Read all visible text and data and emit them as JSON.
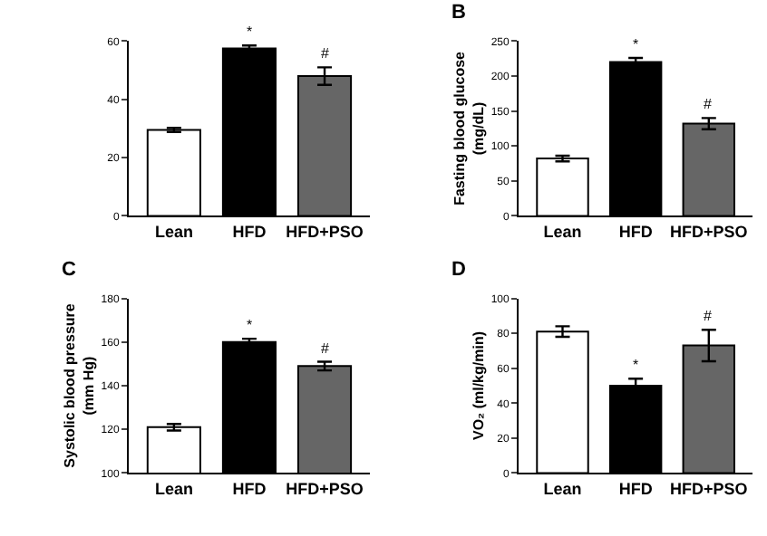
{
  "chart_data": [
    {
      "type": "bar",
      "categories": [
        "Lean",
        "HFD",
        "HFD+PSO"
      ],
      "values": [
        29.5,
        57.5,
        48
      ],
      "errors": [
        0.7,
        1,
        3
      ],
      "colors": [
        "#ffffff",
        "#000000",
        "#666666"
      ],
      "ylim": [
        0,
        60
      ],
      "yticks": [
        0,
        20,
        40,
        60
      ],
      "grid": false,
      "legend": false,
      "annotations": [
        {
          "text": "*",
          "x": "HFD",
          "y": 58.5
        },
        {
          "text": "#",
          "x": "HFD+PSO",
          "y": 51
        }
      ]
    },
    {
      "type": "bar",
      "title": "B",
      "ylabel": "Fasting blood glucose\n(mg/dL)",
      "categories": [
        "Lean",
        "HFD",
        "HFD+PSO"
      ],
      "values": [
        82,
        220,
        132
      ],
      "errors": [
        4,
        6,
        8
      ],
      "colors": [
        "#ffffff",
        "#000000",
        "#666666"
      ],
      "ylim": [
        0,
        250
      ],
      "yticks": [
        0,
        50,
        100,
        150,
        200,
        250
      ],
      "grid": false,
      "legend": false,
      "annotations": [
        {
          "text": "*",
          "x": "HFD",
          "y": 226
        },
        {
          "text": "#",
          "x": "HFD+PSO",
          "y": 140
        }
      ]
    },
    {
      "type": "bar",
      "title": "C",
      "ylabel": "Systolic blood pressure\n(mm Hg)",
      "categories": [
        "Lean",
        "HFD",
        "HFD+PSO"
      ],
      "values": [
        121,
        160,
        149
      ],
      "errors": [
        1.5,
        1.5,
        2
      ],
      "colors": [
        "#ffffff",
        "#000000",
        "#666666"
      ],
      "ylim": [
        100,
        180
      ],
      "yticks": [
        100,
        120,
        140,
        160,
        180
      ],
      "grid": false,
      "legend": false,
      "annotations": [
        {
          "text": "*",
          "x": "HFD",
          "y": 161.5
        },
        {
          "text": "#",
          "x": "HFD+PSO",
          "y": 151
        }
      ]
    },
    {
      "type": "bar",
      "title": "D",
      "ylabel": "VO₂ (ml/kg/min)",
      "categories": [
        "Lean",
        "HFD",
        "HFD+PSO"
      ],
      "values": [
        81,
        50,
        73
      ],
      "errors": [
        3,
        4,
        9
      ],
      "colors": [
        "#ffffff",
        "#000000",
        "#666666"
      ],
      "ylim": [
        0,
        100
      ],
      "yticks": [
        0,
        20,
        40,
        60,
        80,
        100
      ],
      "grid": false,
      "legend": false,
      "annotations": [
        {
          "text": "*",
          "x": "HFD",
          "y": 54
        },
        {
          "text": "#",
          "x": "HFD+PSO",
          "y": 82
        }
      ]
    }
  ]
}
